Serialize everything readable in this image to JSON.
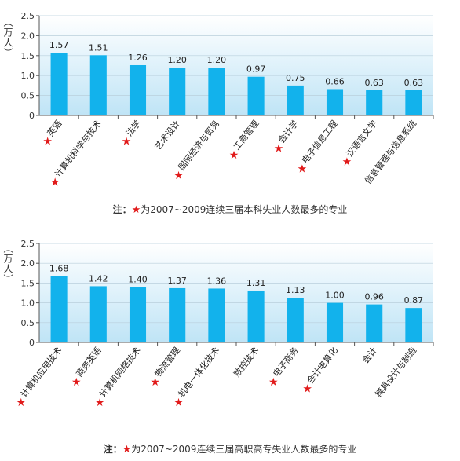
{
  "colors": {
    "bar": "#12b2ec",
    "plot_bg_top": "#ffffff",
    "plot_bg_bottom": "#bfe4f6",
    "star": "#e11b1b",
    "axis": "#555555",
    "grid": "#b9cfdc"
  },
  "chart_data": [
    {
      "type": "bar",
      "title": "",
      "ylabel": "（万人）",
      "xlabel": "",
      "ylim": [
        0,
        2.5
      ],
      "yticks": [
        "0",
        "0.5",
        "1.0",
        "1.5",
        "2.0",
        "2.5"
      ],
      "grid": true,
      "categories": [
        "英语",
        "计算机科学与技术",
        "法学",
        "艺术设计",
        "国际经济与贸易",
        "工商管理",
        "会计学",
        "电子信息工程",
        "汉语言文学",
        "信息管理与信息系统"
      ],
      "values": [
        1.57,
        1.51,
        1.26,
        1.2,
        1.2,
        0.97,
        0.75,
        0.66,
        0.63,
        0.63
      ],
      "value_labels": [
        "1.57",
        "1.51",
        "1.26",
        "1.20",
        "1.20",
        "0.97",
        "0.75",
        "0.66",
        "0.63",
        "0.63"
      ],
      "starred": [
        true,
        true,
        true,
        false,
        true,
        true,
        true,
        true,
        true,
        false
      ],
      "note": {
        "lead": "注：",
        "star": "★",
        "text": "为2007~2009连续三届本科失业人数最多的专业"
      }
    },
    {
      "type": "bar",
      "title": "",
      "ylabel": "（万人）",
      "xlabel": "",
      "ylim": [
        0,
        2.5
      ],
      "yticks": [
        "0",
        "0.5",
        "1.0",
        "1.5",
        "2.0",
        "2.5"
      ],
      "grid": true,
      "categories": [
        "计算机应用技术",
        "商务英语",
        "计算机网络技术",
        "物流管理",
        "机电一体化技术",
        "数控技术",
        "电子商务",
        "会计电算化",
        "会计",
        "模具设计与制造"
      ],
      "values": [
        1.68,
        1.42,
        1.4,
        1.37,
        1.36,
        1.31,
        1.13,
        1.0,
        0.96,
        0.87
      ],
      "value_labels": [
        "1.68",
        "1.42",
        "1.40",
        "1.37",
        "1.36",
        "1.31",
        "1.13",
        "1.00",
        "0.96",
        "0.87"
      ],
      "starred": [
        true,
        true,
        true,
        true,
        true,
        false,
        true,
        true,
        false,
        false
      ],
      "note": {
        "lead": "注：",
        "star": "★",
        "text": "为2007~2009连续三届高职高专失业人数最多的专业"
      }
    }
  ]
}
